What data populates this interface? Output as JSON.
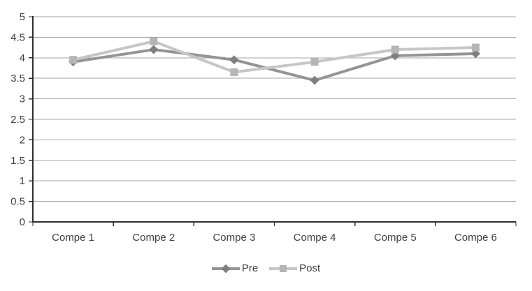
{
  "chart_data": {
    "type": "line",
    "title": "",
    "xlabel": "",
    "ylabel": "",
    "categories": [
      "Compe 1",
      "Compe 2",
      "Compe 3",
      "Compe 4",
      "Compe 5",
      "Compe 6"
    ],
    "series": [
      {
        "name": "Pre",
        "marker": "diamond",
        "line_color": "#949494",
        "marker_color": "#7f7f7f",
        "values": [
          3.9,
          4.2,
          3.95,
          3.45,
          4.05,
          4.1
        ]
      },
      {
        "name": "Post",
        "marker": "square",
        "line_color": "#c6c6c6",
        "marker_color": "#b5b5b5",
        "values": [
          3.95,
          4.4,
          3.65,
          3.9,
          4.2,
          4.25
        ]
      }
    ],
    "ylim": [
      0,
      5
    ],
    "ytick_step": 0.5,
    "ytick_labels": [
      "0",
      "0.5",
      "1",
      "1.5",
      "2",
      "2.5",
      "3",
      "3.5",
      "4",
      "4.5",
      "5"
    ],
    "grid": "horizontal",
    "legend_position": "bottom"
  },
  "colors": {
    "background": "#ffffff",
    "gridline": "#a6a6a6",
    "axis": "#2e2e2e",
    "text": "#3f3f3f"
  }
}
